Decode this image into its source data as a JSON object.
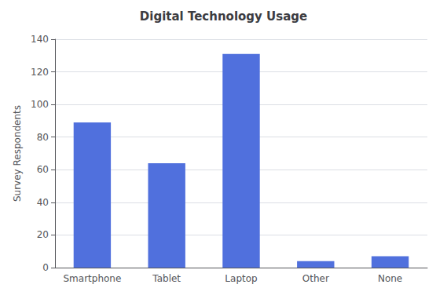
{
  "chart_data": {
    "type": "bar",
    "title": "Digital Technology Usage",
    "categories": [
      "Smartphone",
      "Tablet",
      "Laptop",
      "Other",
      "None"
    ],
    "values": [
      89,
      64,
      131,
      4,
      7
    ],
    "ylabel": "Survey Respondents",
    "ylim": [
      0,
      140
    ],
    "yticks": [
      0,
      20,
      40,
      60,
      80,
      100,
      120,
      140
    ],
    "grid": true
  }
}
